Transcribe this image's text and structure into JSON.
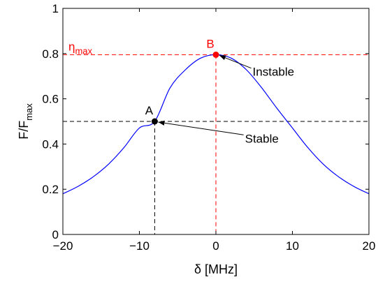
{
  "chart_data": {
    "type": "line",
    "xlabel": "δ [MHz]",
    "ylabel_main": "F/F",
    "ylabel_sub": "max",
    "xlim": [
      -20,
      20
    ],
    "ylim": [
      0,
      1
    ],
    "xticks": [
      -20,
      -10,
      0,
      10,
      20
    ],
    "xtick_labels": [
      "−20",
      "−10",
      "0",
      "10",
      "20"
    ],
    "yticks": [
      0,
      0.2,
      0.4,
      0.6,
      0.8,
      1
    ],
    "ytick_labels": [
      "0",
      "0.2",
      "0.4",
      "0.6",
      "0.8",
      "1"
    ],
    "grid": false,
    "series": [
      {
        "color": "#0000ff",
        "x": [
          -20,
          -18,
          -16,
          -14,
          -12,
          -10,
          -8,
          -6,
          -4,
          -2,
          0,
          2,
          4,
          6,
          8,
          10,
          12,
          14,
          16,
          18,
          20
        ],
        "y": [
          0.18,
          0.213,
          0.256,
          0.312,
          0.385,
          0.471,
          0.5,
          0.648,
          0.728,
          0.78,
          0.795,
          0.78,
          0.728,
          0.648,
          0.557,
          0.471,
          0.385,
          0.312,
          0.256,
          0.213,
          0.18
        ]
      }
    ],
    "points": [
      {
        "label": "A",
        "x": -8,
        "y": 0.5,
        "color": "#000000"
      },
      {
        "label": "B",
        "x": 0,
        "y": 0.795,
        "color": "#ff0000"
      }
    ],
    "guides": [
      {
        "color": "#000000",
        "x": -8,
        "y": 0.5
      },
      {
        "color": "#ff0000",
        "x": 0,
        "y": 0.795
      }
    ],
    "eta_label_main": "η",
    "eta_label_sub": "max",
    "annotations": [
      {
        "text": "Instable",
        "target": "B",
        "text_x": 4.8,
        "text_y": 0.72
      },
      {
        "text": "Stable",
        "target": "A",
        "text_x": 3.8,
        "text_y": 0.425
      }
    ]
  }
}
